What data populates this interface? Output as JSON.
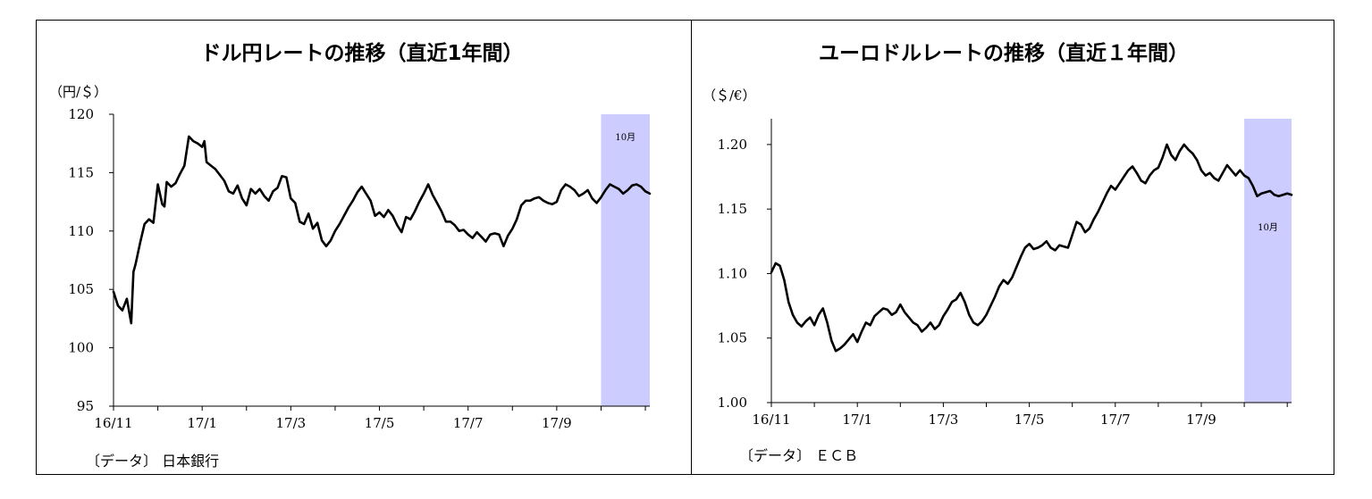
{
  "charts": [
    {
      "title": "ドル円レートの推移（直近1年間）",
      "unit": "（円/＄）",
      "source": "〔データ〕 日本銀行",
      "highlight_label": "10月",
      "highlight_color": "#ccccff"
    },
    {
      "title": "ユーロドルレートの推移（直近１年間）",
      "unit": "（＄/€）",
      "source": "〔データ〕 ＥＣＢ",
      "highlight_label": "10月",
      "highlight_color": "#ccccff"
    }
  ],
  "chart_data": [
    {
      "type": "line",
      "title": "ドル円レートの推移（直近1年間）",
      "ylabel": "（円/＄）",
      "xlabel": "",
      "ylim": [
        95,
        120
      ],
      "yticks": [
        "95",
        "100",
        "105",
        "110",
        "115",
        "120"
      ],
      "xticks": [
        "16/11",
        "17/1",
        "17/3",
        "17/5",
        "17/7",
        "17/9"
      ],
      "xlim": [
        0,
        12.1
      ],
      "highlight": {
        "label": "10月",
        "from": 11.0,
        "to": 12.1
      },
      "series": [
        {
          "color": "#000000",
          "x": [
            0.0,
            0.1,
            0.2,
            0.3,
            0.4,
            0.45,
            0.5,
            0.6,
            0.7,
            0.8,
            0.9,
            1.0,
            1.1,
            1.15,
            1.2,
            1.3,
            1.4,
            1.45,
            1.5,
            1.6,
            1.7,
            1.8,
            1.9,
            2.0,
            2.05,
            2.1,
            2.2,
            2.3,
            2.4,
            2.5,
            2.6,
            2.7,
            2.8,
            2.9,
            3.0,
            3.1,
            3.2,
            3.3,
            3.4,
            3.5,
            3.6,
            3.7,
            3.8,
            3.9,
            4.0,
            4.1,
            4.2,
            4.3,
            4.4,
            4.5,
            4.6,
            4.7,
            4.8,
            4.9,
            5.0,
            5.1,
            5.2,
            5.3,
            5.4,
            5.5,
            5.6,
            5.7,
            5.8,
            5.9,
            6.0,
            6.1,
            6.2,
            6.3,
            6.4,
            6.5,
            6.6,
            6.7,
            6.8,
            6.9,
            7.0,
            7.1,
            7.2,
            7.3,
            7.4,
            7.5,
            7.6,
            7.7,
            7.8,
            7.9,
            8.0,
            8.1,
            8.2,
            8.3,
            8.4,
            8.5,
            8.6,
            8.7,
            8.8,
            8.9,
            9.0,
            9.1,
            9.2,
            9.3,
            9.4,
            9.5,
            9.6,
            9.7,
            9.8,
            9.9,
            10.0,
            10.1,
            10.2,
            10.3,
            10.4,
            10.5,
            10.6,
            10.7,
            10.8,
            10.9,
            11.0,
            11.1,
            11.2,
            11.3,
            11.4,
            11.5,
            11.6,
            11.7,
            11.8,
            11.9,
            12.0,
            12.1
          ],
          "y": [
            104.8,
            103.6,
            103.2,
            104.2,
            102.1,
            106.5,
            107.2,
            109.0,
            110.6,
            111.0,
            110.7,
            114.0,
            112.3,
            112.1,
            114.2,
            113.8,
            114.1,
            114.5,
            114.9,
            115.6,
            118.1,
            117.7,
            117.5,
            117.2,
            117.7,
            115.9,
            115.6,
            115.3,
            114.8,
            114.3,
            113.4,
            113.2,
            113.9,
            112.8,
            112.2,
            113.6,
            113.2,
            113.6,
            113.0,
            112.6,
            113.4,
            113.7,
            114.7,
            114.6,
            112.8,
            112.4,
            110.8,
            110.6,
            111.5,
            110.2,
            110.7,
            109.2,
            108.7,
            109.2,
            110.0,
            110.6,
            111.3,
            112.0,
            112.6,
            113.3,
            113.8,
            113.2,
            112.6,
            111.3,
            111.6,
            111.2,
            111.8,
            111.3,
            110.5,
            109.9,
            111.2,
            111.0,
            111.7,
            112.5,
            113.2,
            114.0,
            113.1,
            112.4,
            111.7,
            110.8,
            110.8,
            110.5,
            110.0,
            110.1,
            109.7,
            109.4,
            109.9,
            109.5,
            109.1,
            109.7,
            109.8,
            109.7,
            108.7,
            109.6,
            110.2,
            111.0,
            112.2,
            112.6,
            112.6,
            112.8,
            112.9,
            112.6,
            112.4,
            112.3,
            112.5,
            113.5,
            114.0,
            113.8,
            113.5,
            113.0,
            113.2,
            113.5,
            112.8,
            112.4,
            112.9,
            113.5,
            114.0,
            113.8,
            113.6,
            113.2,
            113.5,
            113.9,
            114.0,
            113.8,
            113.4,
            113.2
          ]
        }
      ]
    },
    {
      "type": "line",
      "title": "ユーロドルレートの推移（直近１年間）",
      "ylabel": "（＄/€）",
      "xlabel": "",
      "ylim": [
        1.0,
        1.22
      ],
      "yticks": [
        "1.00",
        "1.05",
        "1.10",
        "1.15",
        "1.20"
      ],
      "xticks": [
        "16/11",
        "17/1",
        "17/3",
        "17/5",
        "17/7",
        "17/9"
      ],
      "xlim": [
        0,
        12.1
      ],
      "highlight": {
        "label": "10月",
        "from": 11.0,
        "to": 12.1
      },
      "series": [
        {
          "color": "#000000",
          "x": [
            0.0,
            0.1,
            0.2,
            0.3,
            0.4,
            0.5,
            0.6,
            0.7,
            0.8,
            0.9,
            1.0,
            1.1,
            1.2,
            1.3,
            1.4,
            1.5,
            1.6,
            1.7,
            1.8,
            1.9,
            2.0,
            2.1,
            2.2,
            2.3,
            2.4,
            2.5,
            2.6,
            2.7,
            2.8,
            2.9,
            3.0,
            3.1,
            3.2,
            3.3,
            3.4,
            3.5,
            3.6,
            3.7,
            3.8,
            3.9,
            4.0,
            4.1,
            4.2,
            4.3,
            4.4,
            4.5,
            4.6,
            4.7,
            4.8,
            4.9,
            5.0,
            5.1,
            5.2,
            5.3,
            5.4,
            5.5,
            5.6,
            5.7,
            5.8,
            5.9,
            6.0,
            6.1,
            6.2,
            6.3,
            6.4,
            6.5,
            6.6,
            6.7,
            6.8,
            6.9,
            7.0,
            7.1,
            7.2,
            7.3,
            7.4,
            7.5,
            7.6,
            7.7,
            7.8,
            7.9,
            8.0,
            8.1,
            8.2,
            8.3,
            8.4,
            8.5,
            8.6,
            8.7,
            8.8,
            8.9,
            9.0,
            9.1,
            9.2,
            9.3,
            9.4,
            9.5,
            9.6,
            9.7,
            9.8,
            9.9,
            10.0,
            10.1,
            10.2,
            10.3,
            10.4,
            10.5,
            10.6,
            10.7,
            10.8,
            10.9,
            11.0,
            11.1,
            11.2,
            11.3,
            11.4,
            11.5,
            11.6,
            11.7,
            11.8,
            11.9,
            12.0,
            12.1
          ],
          "y": [
            1.101,
            1.108,
            1.106,
            1.095,
            1.078,
            1.068,
            1.062,
            1.059,
            1.063,
            1.066,
            1.06,
            1.068,
            1.073,
            1.062,
            1.048,
            1.04,
            1.042,
            1.045,
            1.049,
            1.053,
            1.047,
            1.055,
            1.062,
            1.06,
            1.067,
            1.07,
            1.073,
            1.072,
            1.068,
            1.07,
            1.076,
            1.07,
            1.066,
            1.062,
            1.06,
            1.055,
            1.058,
            1.062,
            1.057,
            1.06,
            1.067,
            1.072,
            1.078,
            1.08,
            1.085,
            1.078,
            1.068,
            1.062,
            1.06,
            1.063,
            1.068,
            1.075,
            1.082,
            1.09,
            1.095,
            1.092,
            1.097,
            1.105,
            1.113,
            1.12,
            1.123,
            1.119,
            1.12,
            1.122,
            1.125,
            1.12,
            1.118,
            1.122,
            1.121,
            1.12,
            1.13,
            1.14,
            1.138,
            1.132,
            1.135,
            1.142,
            1.148,
            1.155,
            1.162,
            1.168,
            1.165,
            1.17,
            1.175,
            1.18,
            1.183,
            1.178,
            1.172,
            1.17,
            1.176,
            1.18,
            1.182,
            1.19,
            1.2,
            1.192,
            1.188,
            1.195,
            1.2,
            1.196,
            1.193,
            1.188,
            1.18,
            1.176,
            1.178,
            1.174,
            1.172,
            1.178,
            1.184,
            1.18,
            1.176,
            1.18,
            1.176,
            1.174,
            1.168,
            1.16,
            1.162,
            1.163,
            1.164,
            1.161,
            1.16,
            1.161,
            1.162,
            1.161
          ]
        }
      ]
    }
  ]
}
